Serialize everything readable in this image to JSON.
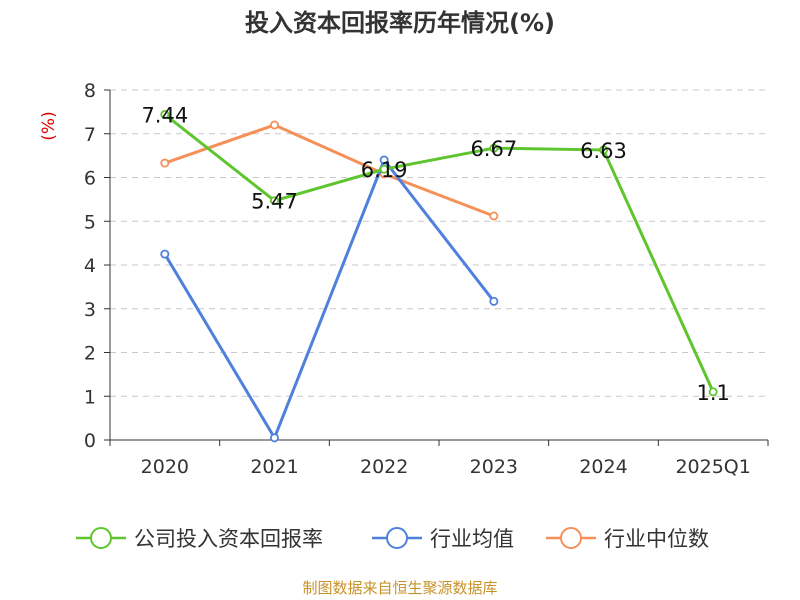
{
  "chart_data": {
    "type": "line",
    "title": "投入资本回报率历年情况(%)",
    "ylabel": "(%)",
    "xlabel": "",
    "categories": [
      "2020",
      "2021",
      "2022",
      "2023",
      "2024",
      "2025Q1"
    ],
    "ylim": [
      0,
      8
    ],
    "yticks": [
      0,
      1,
      2,
      3,
      4,
      5,
      6,
      7,
      8
    ],
    "grid": true,
    "legend_position": "bottom",
    "series": [
      {
        "name": "公司投入资本回报率",
        "color": "#5fc52e",
        "values": [
          7.44,
          5.47,
          6.19,
          6.67,
          6.63,
          1.1
        ],
        "labels": [
          "7.44",
          "5.47",
          "6.19",
          "6.67",
          "6.63",
          "1.1"
        ]
      },
      {
        "name": "行业均值",
        "color": "#4f81dc",
        "values": [
          4.25,
          0.05,
          6.4,
          3.17,
          null,
          null
        ]
      },
      {
        "name": "行业中位数",
        "color": "#f49058",
        "values": [
          6.33,
          7.2,
          6.08,
          5.12,
          null,
          null
        ]
      }
    ]
  },
  "footer": "制图数据来自恒生聚源数据库"
}
